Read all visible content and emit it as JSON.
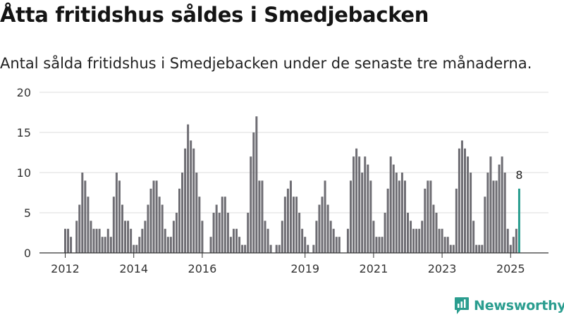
{
  "header": {
    "title": "Åtta fritidshus såldes i Smedjebacken",
    "subtitle": "Antal sålda fritidshus i Smedjebacken under de senaste tre månaderna."
  },
  "branding": {
    "name": "Newsworthy",
    "icon": "newsworthy-logo-icon",
    "color": "#2a9d8f"
  },
  "chart_data": {
    "type": "bar",
    "title": "Åtta fritidshus såldes i Smedjebacken",
    "subtitle": "Antal sålda fritidshus i Smedjebacken under de senaste tre månaderna.",
    "xlabel": "",
    "ylabel": "",
    "ylim": [
      0,
      20
    ],
    "yticks": [
      "0",
      "5",
      "10",
      "15",
      "20"
    ],
    "xticks": [
      {
        "label": "2012",
        "index": 0
      },
      {
        "label": "2014",
        "index": 24
      },
      {
        "label": "2016",
        "index": 48
      },
      {
        "label": "2019",
        "index": 84
      },
      {
        "label": "2021",
        "index": 108
      },
      {
        "label": "2023",
        "index": 132
      },
      {
        "label": "2025",
        "index": 156
      }
    ],
    "grid": true,
    "legend": "none",
    "colors": {
      "bar": "#6e6d73",
      "highlight": "#2a9d8f",
      "grid": "#dddddd",
      "axis": "#333333"
    },
    "highlight_index": 159,
    "highlight_label": "8",
    "values": [
      3,
      3,
      2,
      0,
      4,
      6,
      10,
      9,
      7,
      4,
      3,
      3,
      3,
      2,
      2,
      3,
      2,
      7,
      10,
      9,
      6,
      4,
      4,
      3,
      1,
      1,
      2,
      3,
      4,
      6,
      8,
      9,
      9,
      7,
      6,
      3,
      2,
      2,
      4,
      5,
      8,
      10,
      13,
      16,
      14,
      13,
      10,
      7,
      4,
      0,
      0,
      2,
      5,
      6,
      5,
      7,
      7,
      5,
      2,
      3,
      3,
      2,
      1,
      1,
      5,
      12,
      15,
      17,
      9,
      9,
      4,
      3,
      1,
      0,
      1,
      1,
      4,
      7,
      8,
      9,
      7,
      7,
      5,
      3,
      2,
      1,
      0,
      1,
      4,
      6,
      7,
      9,
      6,
      4,
      3,
      2,
      2,
      0,
      0,
      3,
      9,
      12,
      13,
      12,
      10,
      12,
      11,
      9,
      4,
      2,
      2,
      2,
      5,
      8,
      12,
      11,
      10,
      9,
      10,
      9,
      5,
      4,
      3,
      3,
      3,
      4,
      8,
      9,
      9,
      6,
      5,
      3,
      3,
      2,
      2,
      1,
      1,
      8,
      13,
      14,
      13,
      12,
      10,
      4,
      1,
      1,
      1,
      7,
      10,
      12,
      9,
      9,
      11,
      12,
      10,
      3,
      1,
      2,
      3,
      8
    ]
  }
}
